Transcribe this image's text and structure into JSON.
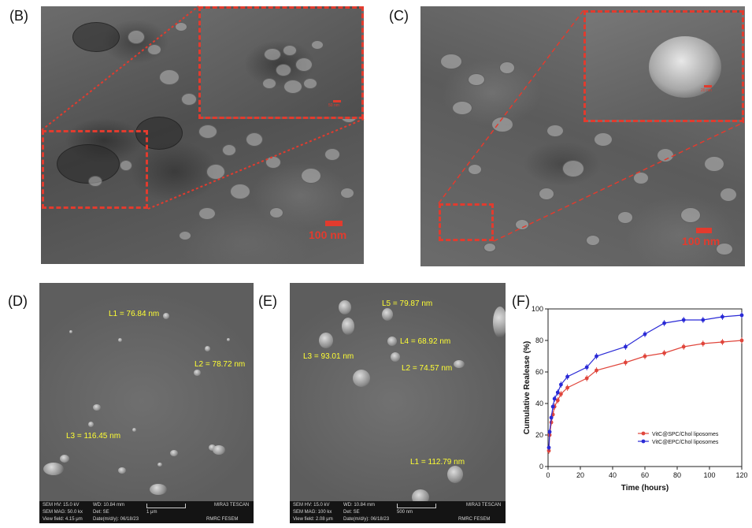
{
  "panels": {
    "b": {
      "label": "(B)",
      "scale": "100 nm",
      "inset_scale": "50 nm"
    },
    "c": {
      "label": "(C)",
      "scale": "100 nm",
      "inset_scale": "20 nm"
    },
    "d": {
      "label": "(D)",
      "measurements": [
        "L1 = 76.84 nm",
        "L2 = 78.72 nm",
        "L3 = 116.45 nm"
      ],
      "footer": {
        "hv": "SEM HV: 15.0 kV",
        "wd": "WD: 10.84 mm",
        "brand": "MIRA3 TESCAN",
        "mag": "SEM MAG: 50.0 kx",
        "det": "Det: SE",
        "bar": "1 μm",
        "field": "View field: 4.15 μm",
        "date": "Date(m/d/y): 06/18/23",
        "lab": "RMRC  FESEM"
      }
    },
    "e": {
      "label": "(E)",
      "measurements": [
        "L5 = 79.87 nm",
        "L4 = 68.92 nm",
        "L3 = 93.01 nm",
        "L2 = 74.57 nm",
        "L1 = 112.79 nm"
      ],
      "footer": {
        "hv": "SEM HV: 15.0 kV",
        "wd": "WD: 10.84 mm",
        "brand": "MIRA3 TESCAN",
        "mag": "SEM MAG: 100 kx",
        "det": "Det: SE",
        "bar": "500 nm",
        "field": "View field: 2.08 μm",
        "date": "Date(m/d/y): 06/18/23",
        "lab": "RMRC  FESEM"
      }
    },
    "f": {
      "label": "(F)"
    }
  },
  "chart_data": {
    "type": "line",
    "xlabel": "Time (hours)",
    "ylabel": "Cumulative Realease (%)",
    "xlim": [
      0,
      120
    ],
    "ylim": [
      0,
      100
    ],
    "xticks": [
      0,
      20,
      40,
      60,
      80,
      100,
      120
    ],
    "yticks": [
      0,
      20,
      40,
      60,
      80,
      100
    ],
    "legend_position": "bottom-right",
    "series": [
      {
        "name": "VitC@SPC/Chol liposomes",
        "color": "#e0463c",
        "x": [
          0.5,
          1,
          2,
          3,
          4,
          6,
          8,
          12,
          24,
          30,
          48,
          60,
          72,
          84,
          96,
          108,
          120
        ],
        "y": [
          10,
          20,
          28,
          33,
          38,
          42,
          46,
          50,
          56,
          61,
          66,
          70,
          72,
          76,
          78,
          79,
          80
        ],
        "err": [
          2,
          2,
          2,
          2,
          2,
          2,
          2,
          2,
          2,
          2,
          2,
          2,
          2,
          2,
          2,
          2,
          2
        ]
      },
      {
        "name": "VitC@EPC/Chol liposomes",
        "color": "#2a2ad6",
        "x": [
          0.5,
          1,
          2,
          3,
          4,
          6,
          8,
          12,
          24,
          30,
          48,
          60,
          72,
          84,
          96,
          108,
          120
        ],
        "y": [
          12,
          22,
          31,
          38,
          43,
          47,
          52,
          57,
          63,
          70,
          76,
          84,
          91,
          93,
          93,
          95,
          96
        ],
        "err": [
          2,
          2,
          2,
          2,
          2,
          2,
          2,
          2,
          2,
          2,
          2,
          2,
          2,
          2,
          2,
          2,
          2
        ]
      }
    ]
  }
}
